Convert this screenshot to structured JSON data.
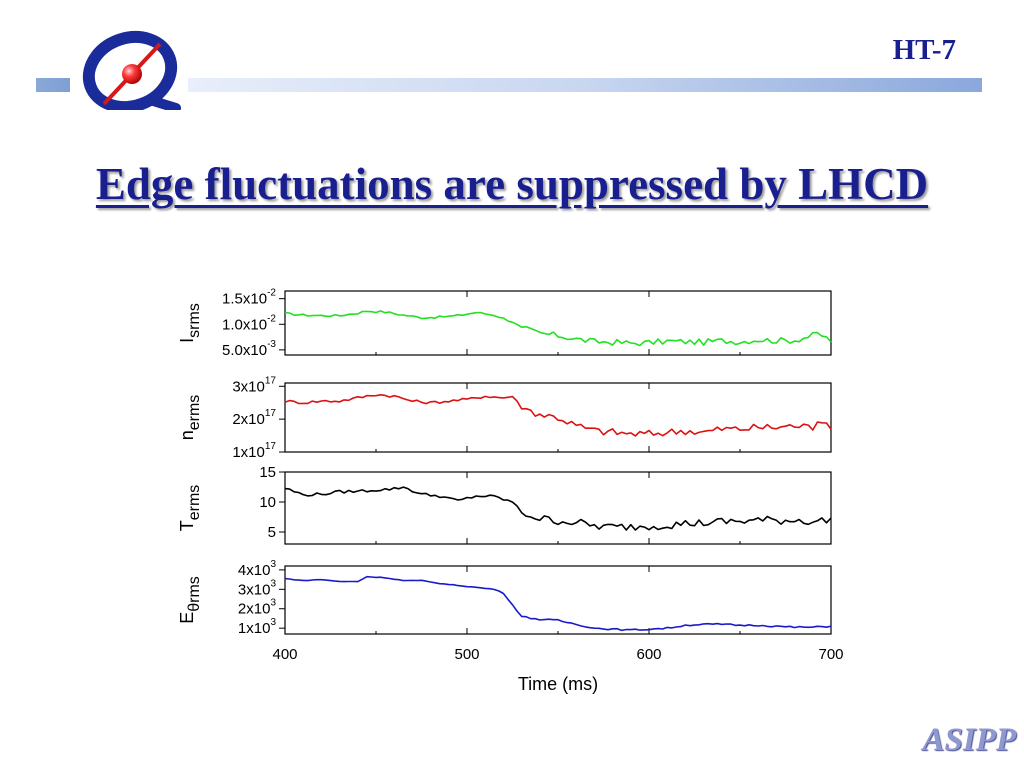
{
  "slide": {
    "title": "Edge fluctuations are suppressed by LHCD",
    "top_right_label": "HT-7",
    "bottom_right_label": "ASIPP",
    "accent_color": "#1a1f8f",
    "logo_icon": "ht7-tokamak-logo-icon"
  },
  "chart_data": [
    {
      "type": "line",
      "ylabel": "I",
      "ylabel_sub": "srms",
      "color": "#22e022",
      "ylim": [
        0.004,
        0.0165
      ],
      "yticks": [
        0.005,
        0.01,
        0.015
      ],
      "ytick_labels": [
        {
          "base": "5.0x10",
          "exp": "-3"
        },
        {
          "base": "1.0x10",
          "exp": "-2"
        },
        {
          "base": "1.5x10",
          "exp": "-2"
        }
      ],
      "xlim": [
        400,
        700
      ],
      "x": [
        400,
        410,
        420,
        430,
        440,
        445,
        455,
        465,
        475,
        485,
        495,
        505,
        515,
        525,
        530,
        540,
        550,
        560,
        570,
        580,
        590,
        600,
        610,
        620,
        630,
        640,
        650,
        660,
        670,
        680,
        690,
        693,
        700
      ],
      "values": [
        0.0121,
        0.0118,
        0.0117,
        0.0117,
        0.0122,
        0.0126,
        0.0124,
        0.0118,
        0.0113,
        0.0114,
        0.0117,
        0.0123,
        0.0118,
        0.0105,
        0.0093,
        0.0082,
        0.0078,
        0.0071,
        0.0066,
        0.0065,
        0.0063,
        0.0064,
        0.0067,
        0.0066,
        0.0065,
        0.0068,
        0.0066,
        0.007,
        0.0068,
        0.0069,
        0.0078,
        0.0082,
        0.0068
      ],
      "noise": 0.0006
    },
    {
      "type": "line",
      "ylabel": "n",
      "ylabel_sub": "erms",
      "color": "#dd1111",
      "ylim": [
        1e+17,
        3.1e+17
      ],
      "yticks": [
        1e+17,
        2e+17,
        3e+17
      ],
      "ytick_labels": [
        {
          "base": "1x10",
          "exp": "17"
        },
        {
          "base": "2x10",
          "exp": "17"
        },
        {
          "base": "3x10",
          "exp": "17"
        }
      ],
      "xlim": [
        400,
        700
      ],
      "x": [
        400,
        410,
        420,
        430,
        440,
        450,
        460,
        470,
        480,
        490,
        500,
        510,
        520,
        525,
        530,
        540,
        550,
        560,
        570,
        580,
        590,
        600,
        610,
        620,
        630,
        640,
        650,
        660,
        670,
        680,
        690,
        693,
        700
      ],
      "values": [
        2.55e+17,
        2.5e+17,
        2.55e+17,
        2.55e+17,
        2.65e+17,
        2.75e+17,
        2.7e+17,
        2.55e+17,
        2.5e+17,
        2.55e+17,
        2.6e+17,
        2.7e+17,
        2.65e+17,
        2.7e+17,
        2.35e+17,
        2.15e+17,
        2.05e+17,
        1.8e+17,
        1.65e+17,
        1.6e+17,
        1.55e+17,
        1.55e+17,
        1.6e+17,
        1.65e+17,
        1.6e+17,
        1.7e+17,
        1.7e+17,
        1.75e+17,
        1.75e+17,
        1.8e+17,
        1.75e+17,
        2.05e+17,
        1.8e+17
      ],
      "noise": 1.2e+16
    },
    {
      "type": "line",
      "ylabel": "T",
      "ylabel_sub": "erms",
      "color": "#000000",
      "ylim": [
        3,
        15
      ],
      "yticks": [
        5,
        10,
        15
      ],
      "ytick_labels": [
        {
          "base": "5",
          "exp": ""
        },
        {
          "base": "10",
          "exp": ""
        },
        {
          "base": "15",
          "exp": ""
        }
      ],
      "xlim": [
        400,
        700
      ],
      "x": [
        400,
        410,
        420,
        430,
        440,
        450,
        460,
        465,
        475,
        485,
        495,
        505,
        515,
        525,
        530,
        540,
        550,
        560,
        570,
        580,
        590,
        600,
        610,
        620,
        630,
        640,
        650,
        660,
        670,
        680,
        690,
        700
      ],
      "values": [
        12.3,
        11.2,
        11.3,
        11.7,
        11.8,
        12.0,
        12.2,
        12.5,
        11.3,
        11.0,
        10.2,
        11.0,
        10.9,
        10.0,
        8.3,
        7.2,
        6.9,
        6.6,
        6.0,
        5.8,
        5.9,
        6.0,
        6.2,
        6.4,
        6.5,
        6.7,
        6.8,
        7.0,
        6.9,
        7.0,
        6.8,
        6.9
      ],
      "noise": 0.7
    },
    {
      "type": "line",
      "ylabel": "E",
      "ylabel_sub": "θrms",
      "color": "#1a1acc",
      "ylim": [
        700,
        4200
      ],
      "yticks": [
        1000,
        2000,
        3000,
        4000
      ],
      "ytick_labels": [
        {
          "base": "1x10",
          "exp": "3"
        },
        {
          "base": "2x10",
          "exp": "3"
        },
        {
          "base": "3x10",
          "exp": "3"
        },
        {
          "base": "4x10",
          "exp": "3"
        }
      ],
      "xlim": [
        400,
        700
      ],
      "x": [
        400,
        410,
        420,
        430,
        440,
        445,
        455,
        465,
        475,
        485,
        495,
        505,
        515,
        520,
        525,
        530,
        540,
        550,
        560,
        570,
        580,
        590,
        600,
        610,
        620,
        630,
        640,
        650,
        660,
        670,
        680,
        690,
        700
      ],
      "values": [
        3550,
        3450,
        3500,
        3400,
        3400,
        3650,
        3600,
        3450,
        3450,
        3300,
        3200,
        3100,
        3000,
        2800,
        2200,
        1600,
        1450,
        1400,
        1200,
        1000,
        950,
        900,
        950,
        1000,
        1150,
        1200,
        1200,
        1150,
        1150,
        1100,
        1050,
        1050,
        1100
      ],
      "noise": 40
    }
  ],
  "shared_x_axis": {
    "label": "Time (ms)",
    "ticks": [
      400,
      500,
      600,
      700
    ],
    "tick_labels": [
      "400",
      "500",
      "600",
      "700"
    ]
  }
}
